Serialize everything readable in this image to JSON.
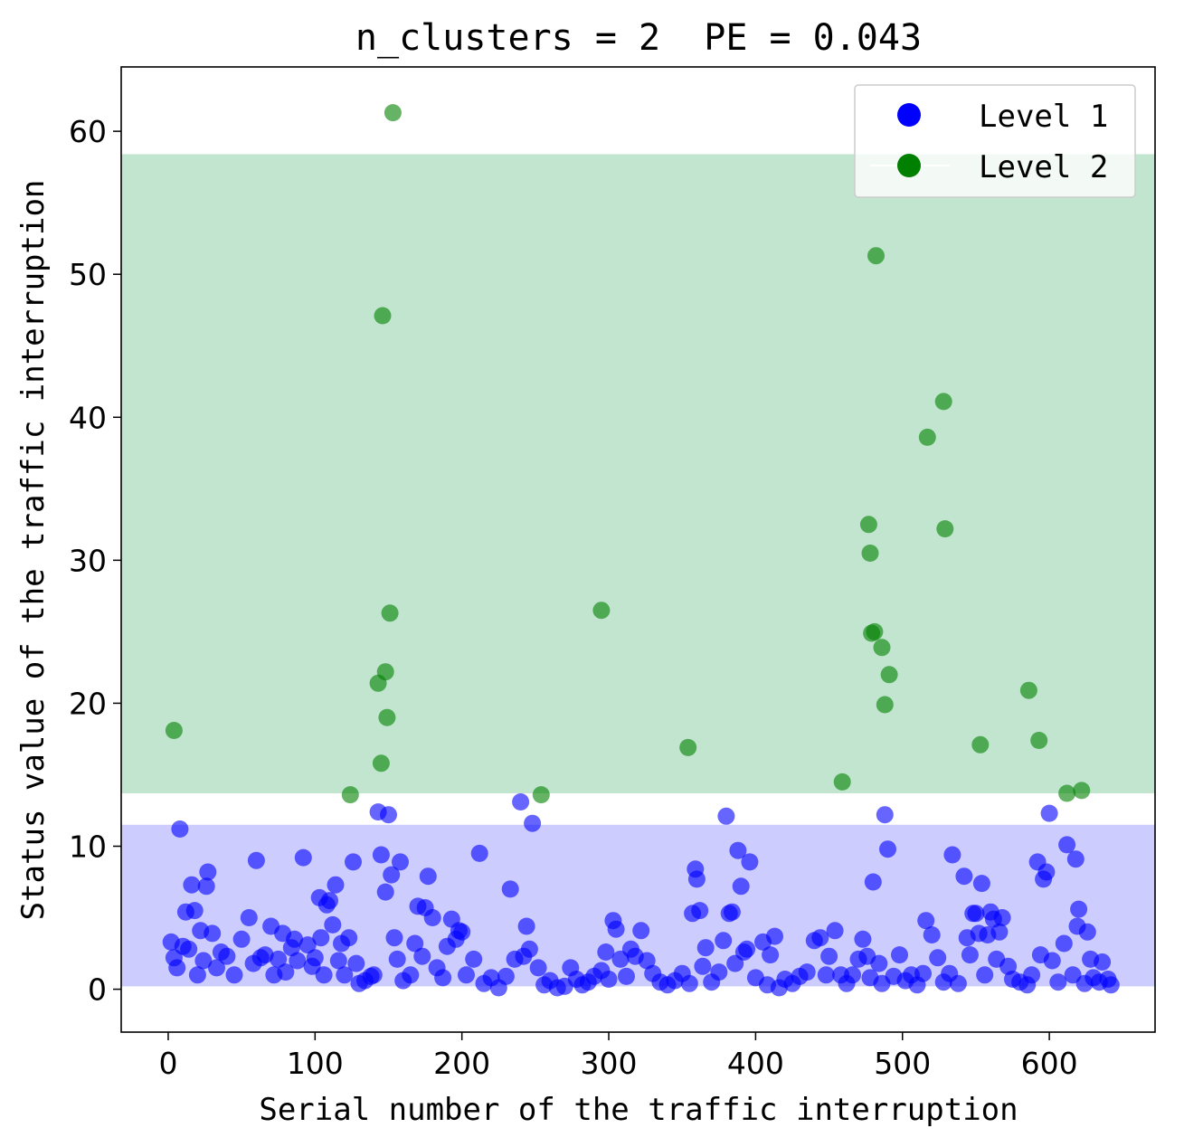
{
  "chart_data": {
    "type": "scatter",
    "title": "n_clusters = 2  PE = 0.043",
    "xlabel": "Serial number of the traffic interruption",
    "ylabel": "Status value of the traffic interruption",
    "xlim": [
      -32,
      672
    ],
    "ylim": [
      -3,
      64.5
    ],
    "xticks": [
      0,
      100,
      200,
      300,
      400,
      500,
      600
    ],
    "yticks": [
      0,
      10,
      20,
      30,
      40,
      50,
      60
    ],
    "grid": false,
    "legend_position": "top-right",
    "bands": [
      {
        "series": "Level 1",
        "y_range": [
          0.2,
          11.5
        ],
        "color": "#ccccff"
      },
      {
        "series": "Level 2",
        "y_range": [
          13.7,
          58.4
        ],
        "color": "#c2e5cf"
      }
    ],
    "series": [
      {
        "name": "Level 1",
        "color": "#0000ff",
        "points": [
          [
            2,
            3.3
          ],
          [
            4,
            2.2
          ],
          [
            6,
            1.5
          ],
          [
            8,
            11.2
          ],
          [
            10,
            3.0
          ],
          [
            12,
            5.4
          ],
          [
            14,
            2.8
          ],
          [
            16,
            7.3
          ],
          [
            18,
            5.5
          ],
          [
            20,
            1.0
          ],
          [
            22,
            4.1
          ],
          [
            24,
            2.0
          ],
          [
            26,
            7.2
          ],
          [
            27,
            8.2
          ],
          [
            30,
            3.9
          ],
          [
            33,
            1.5
          ],
          [
            36,
            2.6
          ],
          [
            40,
            2.3
          ],
          [
            45,
            1.0
          ],
          [
            50,
            3.5
          ],
          [
            55,
            5.0
          ],
          [
            58,
            1.8
          ],
          [
            60,
            9.0
          ],
          [
            63,
            2.2
          ],
          [
            66,
            2.4
          ],
          [
            70,
            4.4
          ],
          [
            72,
            1.0
          ],
          [
            75,
            2.1
          ],
          [
            78,
            3.9
          ],
          [
            80,
            1.2
          ],
          [
            84,
            2.9
          ],
          [
            86,
            3.5
          ],
          [
            88,
            2.0
          ],
          [
            92,
            9.2
          ],
          [
            95,
            3.1
          ],
          [
            98,
            1.6
          ],
          [
            100,
            2.2
          ],
          [
            103,
            6.4
          ],
          [
            104,
            3.6
          ],
          [
            106,
            1.0
          ],
          [
            108,
            5.9
          ],
          [
            110,
            6.2
          ],
          [
            112,
            4.5
          ],
          [
            114,
            7.3
          ],
          [
            116,
            2.0
          ],
          [
            118,
            3.2
          ],
          [
            120,
            1.0
          ],
          [
            123,
            3.6
          ],
          [
            126,
            8.9
          ],
          [
            128,
            1.8
          ],
          [
            130,
            0.4
          ],
          [
            134,
            0.6
          ],
          [
            138,
            0.9
          ],
          [
            140,
            1.0
          ],
          [
            143,
            12.4
          ],
          [
            145,
            9.4
          ],
          [
            148,
            6.8
          ],
          [
            150,
            12.2
          ],
          [
            152,
            8.0
          ],
          [
            154,
            3.6
          ],
          [
            156,
            2.1
          ],
          [
            158,
            8.9
          ],
          [
            160,
            0.6
          ],
          [
            165,
            1.0
          ],
          [
            168,
            3.2
          ],
          [
            170,
            5.8
          ],
          [
            173,
            2.3
          ],
          [
            175,
            5.7
          ],
          [
            177,
            7.9
          ],
          [
            180,
            5.0
          ],
          [
            183,
            1.5
          ],
          [
            187,
            0.8
          ],
          [
            190,
            3.0
          ],
          [
            193,
            4.9
          ],
          [
            196,
            3.5
          ],
          [
            198,
            4.1
          ],
          [
            200,
            4.0
          ],
          [
            203,
            1.0
          ],
          [
            208,
            2.1
          ],
          [
            212,
            9.5
          ],
          [
            215,
            0.4
          ],
          [
            220,
            0.8
          ],
          [
            225,
            0.1
          ],
          [
            230,
            0.9
          ],
          [
            233,
            7.0
          ],
          [
            236,
            2.1
          ],
          [
            240,
            13.1
          ],
          [
            242,
            2.3
          ],
          [
            244,
            4.4
          ],
          [
            246,
            2.8
          ],
          [
            248,
            11.6
          ],
          [
            252,
            1.5
          ],
          [
            256,
            0.3
          ],
          [
            260,
            0.6
          ],
          [
            265,
            0.1
          ],
          [
            270,
            0.2
          ],
          [
            274,
            1.5
          ],
          [
            278,
            0.7
          ],
          [
            282,
            0.3
          ],
          [
            286,
            0.5
          ],
          [
            290,
            0.9
          ],
          [
            295,
            1.3
          ],
          [
            298,
            2.6
          ],
          [
            300,
            0.7
          ],
          [
            303,
            4.8
          ],
          [
            305,
            4.2
          ],
          [
            308,
            2.1
          ],
          [
            312,
            0.9
          ],
          [
            315,
            2.8
          ],
          [
            318,
            2.3
          ],
          [
            322,
            4.1
          ],
          [
            326,
            2.0
          ],
          [
            330,
            1.1
          ],
          [
            335,
            0.5
          ],
          [
            340,
            0.3
          ],
          [
            345,
            0.6
          ],
          [
            350,
            1.1
          ],
          [
            355,
            0.4
          ],
          [
            357,
            5.3
          ],
          [
            359,
            8.4
          ],
          [
            360,
            7.7
          ],
          [
            362,
            5.5
          ],
          [
            364,
            1.6
          ],
          [
            366,
            2.9
          ],
          [
            370,
            0.5
          ],
          [
            375,
            1.2
          ],
          [
            378,
            3.4
          ],
          [
            380,
            12.1
          ],
          [
            382,
            5.3
          ],
          [
            384,
            5.4
          ],
          [
            386,
            1.8
          ],
          [
            388,
            9.7
          ],
          [
            390,
            7.2
          ],
          [
            392,
            2.6
          ],
          [
            394,
            2.8
          ],
          [
            396,
            8.9
          ],
          [
            400,
            0.8
          ],
          [
            405,
            3.3
          ],
          [
            408,
            0.3
          ],
          [
            410,
            2.4
          ],
          [
            413,
            3.7
          ],
          [
            416,
            0.1
          ],
          [
            420,
            0.7
          ],
          [
            425,
            0.4
          ],
          [
            430,
            0.9
          ],
          [
            435,
            1.2
          ],
          [
            440,
            3.4
          ],
          [
            444,
            3.6
          ],
          [
            448,
            1.0
          ],
          [
            450,
            2.3
          ],
          [
            454,
            4.1
          ],
          [
            458,
            1.0
          ],
          [
            462,
            0.4
          ],
          [
            466,
            1.0
          ],
          [
            470,
            2.1
          ],
          [
            473,
            3.5
          ],
          [
            476,
            2.3
          ],
          [
            478,
            0.8
          ],
          [
            480,
            7.5
          ],
          [
            484,
            1.8
          ],
          [
            486,
            0.4
          ],
          [
            488,
            12.2
          ],
          [
            490,
            9.8
          ],
          [
            494,
            0.9
          ],
          [
            498,
            2.4
          ],
          [
            502,
            0.6
          ],
          [
            506,
            1.0
          ],
          [
            510,
            0.3
          ],
          [
            514,
            1.1
          ],
          [
            516,
            4.8
          ],
          [
            520,
            3.8
          ],
          [
            524,
            2.2
          ],
          [
            528,
            0.5
          ],
          [
            532,
            1.1
          ],
          [
            534,
            9.4
          ],
          [
            538,
            0.4
          ],
          [
            542,
            7.9
          ],
          [
            544,
            3.6
          ],
          [
            546,
            2.4
          ],
          [
            548,
            5.3
          ],
          [
            550,
            5.3
          ],
          [
            552,
            3.9
          ],
          [
            554,
            7.4
          ],
          [
            556,
            1.0
          ],
          [
            558,
            3.8
          ],
          [
            560,
            5.4
          ],
          [
            562,
            4.9
          ],
          [
            564,
            2.1
          ],
          [
            566,
            4.0
          ],
          [
            568,
            5.0
          ],
          [
            572,
            1.6
          ],
          [
            575,
            0.7
          ],
          [
            580,
            0.5
          ],
          [
            585,
            0.3
          ],
          [
            588,
            1.0
          ],
          [
            592,
            8.9
          ],
          [
            594,
            2.4
          ],
          [
            596,
            7.7
          ],
          [
            598,
            8.2
          ],
          [
            600,
            12.3
          ],
          [
            602,
            2.0
          ],
          [
            606,
            0.5
          ],
          [
            610,
            3.2
          ],
          [
            612,
            10.1
          ],
          [
            616,
            1.0
          ],
          [
            618,
            9.1
          ],
          [
            619,
            4.4
          ],
          [
            620,
            5.6
          ],
          [
            624,
            0.4
          ],
          [
            626,
            4.0
          ],
          [
            628,
            2.1
          ],
          [
            630,
            0.8
          ],
          [
            634,
            0.5
          ],
          [
            636,
            1.9
          ],
          [
            640,
            0.7
          ],
          [
            642,
            0.3
          ]
        ]
      },
      {
        "name": "Level 2",
        "color": "#008000",
        "points": [
          [
            4,
            18.1
          ],
          [
            124,
            13.6
          ],
          [
            143,
            21.4
          ],
          [
            145,
            15.8
          ],
          [
            146,
            47.1
          ],
          [
            148,
            22.2
          ],
          [
            149,
            19.0
          ],
          [
            151,
            26.3
          ],
          [
            153,
            61.3
          ],
          [
            254,
            13.6
          ],
          [
            295,
            26.5
          ],
          [
            354,
            16.9
          ],
          [
            459,
            14.5
          ],
          [
            477,
            32.5
          ],
          [
            478,
            30.5
          ],
          [
            479,
            24.9
          ],
          [
            481,
            25.0
          ],
          [
            482,
            51.3
          ],
          [
            486,
            23.9
          ],
          [
            488,
            19.9
          ],
          [
            491,
            22.0
          ],
          [
            517,
            38.6
          ],
          [
            528,
            41.1
          ],
          [
            529,
            32.2
          ],
          [
            553,
            17.1
          ],
          [
            586,
            20.9
          ],
          [
            593,
            17.4
          ],
          [
            612,
            13.7
          ],
          [
            622,
            13.9
          ]
        ]
      }
    ]
  }
}
